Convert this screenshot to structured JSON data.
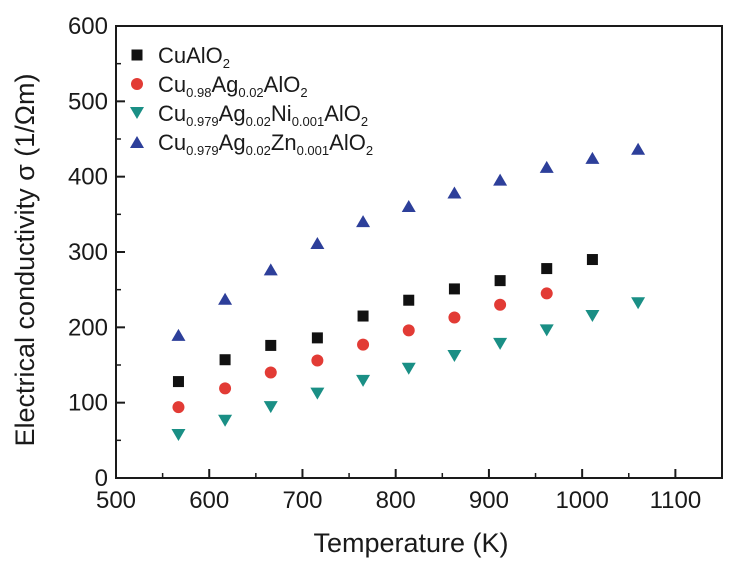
{
  "chart_data": {
    "type": "scatter",
    "xlabel": "Temperature (K)",
    "ylabel": "Electrical conductivity σ (1/Ωm)",
    "xlim": [
      500,
      1150
    ],
    "ylim": [
      0,
      600
    ],
    "xticks": [
      500,
      600,
      700,
      800,
      900,
      1000,
      1100
    ],
    "yticks": [
      0,
      100,
      200,
      300,
      400,
      500,
      600
    ],
    "legend_position": "top-left",
    "grid": false,
    "series": [
      {
        "name": "CuAlO2",
        "label_parts": [
          {
            "t": "CuAlO",
            "sub": false
          },
          {
            "t": "2",
            "sub": true
          }
        ],
        "marker": "square",
        "color": "#111111",
        "x": [
          567,
          617,
          666,
          716,
          765,
          814,
          863,
          912,
          962,
          1011
        ],
        "y": [
          128,
          157,
          176,
          186,
          215,
          236,
          251,
          262,
          278,
          290
        ]
      },
      {
        "name": "Cu0.98Ag0.02AlO2",
        "label_parts": [
          {
            "t": "Cu",
            "sub": false
          },
          {
            "t": "0.98",
            "sub": true
          },
          {
            "t": "Ag",
            "sub": false
          },
          {
            "t": "0.02",
            "sub": true
          },
          {
            "t": "AlO",
            "sub": false
          },
          {
            "t": "2",
            "sub": true
          }
        ],
        "marker": "circle",
        "color": "#e23b35",
        "x": [
          567,
          617,
          666,
          716,
          765,
          814,
          863,
          912,
          962
        ],
        "y": [
          94,
          119,
          140,
          156,
          177,
          196,
          213,
          230,
          245
        ]
      },
      {
        "name": "Cu0.979Ag0.02Ni0.001AlO2",
        "label_parts": [
          {
            "t": "Cu",
            "sub": false
          },
          {
            "t": "0.979",
            "sub": true
          },
          {
            "t": "Ag",
            "sub": false
          },
          {
            "t": "0.02",
            "sub": true
          },
          {
            "t": "Ni",
            "sub": false
          },
          {
            "t": "0.001",
            "sub": true
          },
          {
            "t": "AlO",
            "sub": false
          },
          {
            "t": "2",
            "sub": true
          }
        ],
        "marker": "triangle-down",
        "color": "#1a8f85",
        "x": [
          567,
          617,
          666,
          716,
          765,
          814,
          863,
          912,
          962,
          1011,
          1060
        ],
        "y": [
          57,
          76,
          94,
          112,
          129,
          145,
          162,
          178,
          196,
          215,
          232
        ]
      },
      {
        "name": "Cu0.979Ag0.02Zn0.001AlO2",
        "label_parts": [
          {
            "t": "Cu",
            "sub": false
          },
          {
            "t": "0.979",
            "sub": true
          },
          {
            "t": "Ag",
            "sub": false
          },
          {
            "t": "0.02",
            "sub": true
          },
          {
            "t": "Zn",
            "sub": false
          },
          {
            "t": "0.001",
            "sub": true
          },
          {
            "t": "AlO",
            "sub": false
          },
          {
            "t": "2",
            "sub": true
          }
        ],
        "marker": "triangle-up",
        "color": "#2d3f9a",
        "x": [
          567,
          617,
          666,
          716,
          765,
          814,
          863,
          912,
          962,
          1011,
          1060
        ],
        "y": [
          190,
          238,
          277,
          312,
          341,
          361,
          379,
          396,
          413,
          425,
          437
        ]
      }
    ]
  }
}
